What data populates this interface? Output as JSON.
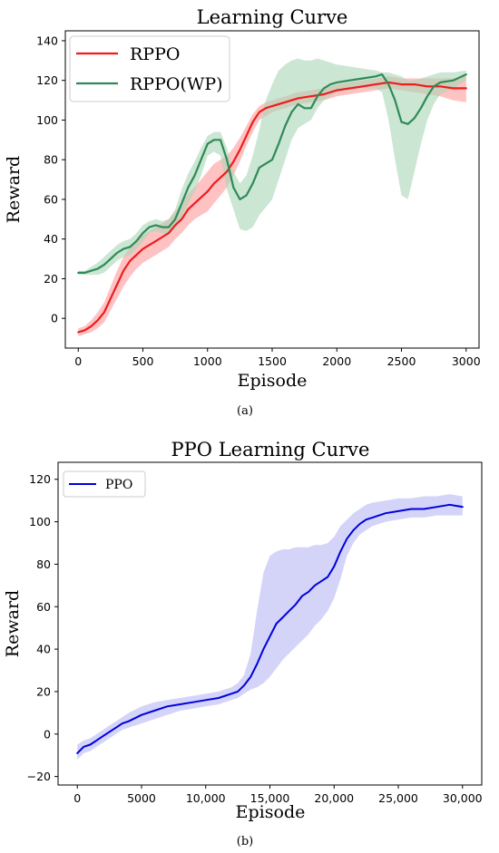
{
  "charts": [
    {
      "id": "a",
      "caption": "(a)",
      "chart_data": {
        "type": "line",
        "title": "Learning Curve",
        "xlabel": "Episode",
        "ylabel": "Reward",
        "xlim": [
          -100,
          3100
        ],
        "ylim": [
          -15,
          145
        ],
        "xticks": [
          0,
          500,
          1000,
          1500,
          2000,
          2500,
          3000
        ],
        "xtick_labels": [
          "0",
          "500",
          "1000",
          "1500",
          "2000",
          "2500",
          "3000"
        ],
        "yticks": [
          0,
          20,
          40,
          60,
          80,
          100,
          120,
          140
        ],
        "ytick_labels": [
          "0",
          "20",
          "40",
          "60",
          "80",
          "100",
          "120",
          "140"
        ],
        "legend": "top-left",
        "grid": false,
        "series": [
          {
            "name": "RPPO",
            "color": "#ee1c1c",
            "band_color": "#ff9a9a",
            "x": [
              0,
              50,
              100,
              150,
              200,
              250,
              300,
              350,
              400,
              450,
              500,
              550,
              600,
              650,
              700,
              750,
              800,
              850,
              900,
              950,
              1000,
              1050,
              1100,
              1150,
              1200,
              1250,
              1300,
              1350,
              1400,
              1450,
              1500,
              1600,
              1700,
              1800,
              1900,
              2000,
              2100,
              2200,
              2300,
              2400,
              2500,
              2600,
              2700,
              2800,
              2900,
              3000
            ],
            "y": [
              -7,
              -6,
              -4,
              -1,
              3,
              10,
              17,
              24,
              29,
              32,
              35,
              37,
              39,
              41,
              43,
              47,
              50,
              55,
              58,
              61,
              64,
              68,
              71,
              74,
              79,
              85,
              92,
              99,
              104,
              106,
              107,
              109,
              111,
              112,
              113,
              115,
              116,
              117,
              118,
              119,
              118,
              118,
              117,
              117,
              116,
              116
            ],
            "upper": [
              -5,
              -4,
              -1,
              3,
              8,
              16,
              24,
              31,
              36,
              39,
              42,
              44,
              46,
              48,
              50,
              54,
              58,
              63,
              66,
              70,
              74,
              78,
              80,
              82,
              86,
              91,
              97,
              103,
              107,
              109,
              110,
              112,
              114,
              115,
              116,
              118,
              119,
              120,
              121,
              122,
              121,
              121,
              121,
              121,
              121,
              122
            ],
            "lower": [
              -9,
              -8,
              -7,
              -5,
              -2,
              4,
              10,
              16,
              21,
              25,
              28,
              30,
              32,
              34,
              36,
              40,
              43,
              47,
              50,
              52,
              54,
              58,
              62,
              66,
              72,
              79,
              87,
              94,
              100,
              102,
              104,
              106,
              108,
              109,
              110,
              112,
              113,
              114,
              115,
              116,
              115,
              114,
              113,
              112,
              110,
              109
            ]
          },
          {
            "name": "RPPO(WP)",
            "color": "#2e8b57",
            "band_color": "#a8d5b5",
            "x": [
              0,
              50,
              100,
              150,
              200,
              250,
              300,
              350,
              400,
              450,
              500,
              550,
              600,
              650,
              700,
              750,
              800,
              850,
              900,
              950,
              1000,
              1050,
              1100,
              1150,
              1200,
              1250,
              1300,
              1350,
              1400,
              1450,
              1500,
              1550,
              1600,
              1650,
              1700,
              1750,
              1800,
              1850,
              1900,
              1950,
              2000,
              2100,
              2200,
              2300,
              2350,
              2400,
              2450,
              2500,
              2550,
              2600,
              2650,
              2700,
              2750,
              2800,
              2900,
              3000
            ],
            "y": [
              23,
              23,
              24,
              25,
              27,
              30,
              33,
              35,
              36,
              39,
              43,
              46,
              47,
              46,
              46,
              50,
              58,
              66,
              72,
              80,
              88,
              90,
              90,
              80,
              66,
              60,
              62,
              68,
              76,
              78,
              80,
              88,
              97,
              104,
              108,
              106,
              106,
              112,
              116,
              118,
              119,
              120,
              121,
              122,
              123,
              118,
              110,
              99,
              98,
              101,
              106,
              112,
              117,
              119,
              120,
              123
            ],
            "upper": [
              24,
              24,
              26,
              28,
              31,
              34,
              37,
              39,
              40,
              43,
              47,
              49,
              50,
              49,
              50,
              55,
              65,
              73,
              79,
              86,
              92,
              94,
              94,
              86,
              74,
              68,
              72,
              82,
              95,
              110,
              118,
              125,
              128,
              130,
              131,
              130,
              130,
              131,
              130,
              129,
              128,
              127,
              126,
              125,
              124,
              124,
              123,
              122,
              120,
              120,
              121,
              122,
              123,
              124,
              124,
              125
            ],
            "lower": [
              22,
              22,
              22,
              22,
              23,
              26,
              29,
              31,
              32,
              35,
              39,
              43,
              44,
              43,
              42,
              45,
              51,
              58,
              64,
              72,
              82,
              84,
              82,
              65,
              55,
              45,
              44,
              46,
              52,
              56,
              60,
              70,
              80,
              90,
              96,
              98,
              100,
              106,
              110,
              112,
              114,
              115,
              116,
              116,
              114,
              100,
              80,
              62,
              60,
              74,
              88,
              100,
              108,
              113,
              116,
              120
            ]
          }
        ]
      }
    },
    {
      "id": "b",
      "caption": "(b)",
      "chart_data": {
        "type": "line",
        "title": "PPO Learning Curve",
        "xlabel": "Episode",
        "ylabel": "Reward",
        "xlim": [
          -1500,
          31500
        ],
        "ylim": [
          -24,
          128
        ],
        "xticks": [
          0,
          5000,
          10000,
          15000,
          20000,
          25000,
          30000
        ],
        "xtick_labels": [
          "0",
          "5000",
          "10,000",
          "15,000",
          "20,000",
          "25,000",
          "30,000"
        ],
        "yticks": [
          -20,
          0,
          20,
          40,
          60,
          80,
          100,
          120
        ],
        "ytick_labels": [
          "−20",
          "0",
          "20",
          "40",
          "60",
          "80",
          "100",
          "120"
        ],
        "legend": "top-left",
        "grid": false,
        "series": [
          {
            "name": "PPO",
            "color": "#0000dd",
            "band_color": "#b8b8f5",
            "x": [
              0,
              500,
              1000,
              1500,
              2000,
              2500,
              3000,
              3500,
              4000,
              5000,
              6000,
              7000,
              8000,
              9000,
              10000,
              11000,
              12000,
              12500,
              13000,
              13500,
              14000,
              14500,
              15000,
              15500,
              16000,
              16500,
              17000,
              17500,
              18000,
              18500,
              19000,
              19500,
              20000,
              20500,
              21000,
              21500,
              22000,
              22500,
              23000,
              24000,
              25000,
              26000,
              27000,
              28000,
              29000,
              30000
            ],
            "y": [
              -9,
              -6,
              -5,
              -3,
              -1,
              1,
              3,
              5,
              6,
              9,
              11,
              13,
              14,
              15,
              16,
              17,
              19,
              20,
              23,
              27,
              33,
              40,
              46,
              52,
              55,
              58,
              61,
              65,
              67,
              70,
              72,
              74,
              79,
              86,
              92,
              96,
              99,
              101,
              102,
              104,
              105,
              106,
              106,
              107,
              108,
              107
            ],
            "upper": [
              -5,
              -3,
              -2,
              0,
              2,
              4,
              6,
              8,
              10,
              13,
              15,
              16,
              17,
              18,
              19,
              20,
              22,
              24,
              28,
              38,
              58,
              76,
              84,
              86,
              87,
              87,
              88,
              88,
              88,
              89,
              89,
              90,
              93,
              98,
              101,
              104,
              106,
              108,
              109,
              110,
              111,
              111,
              112,
              112,
              113,
              112
            ],
            "lower": [
              -12,
              -9,
              -8,
              -6,
              -4,
              -2,
              0,
              2,
              3,
              5,
              7,
              9,
              11,
              12,
              13,
              14,
              16,
              17,
              19,
              21,
              22,
              24,
              27,
              31,
              35,
              38,
              41,
              44,
              47,
              51,
              54,
              58,
              64,
              73,
              84,
              90,
              94,
              96,
              98,
              100,
              101,
              102,
              102,
              103,
              103,
              103
            ]
          }
        ]
      }
    }
  ]
}
